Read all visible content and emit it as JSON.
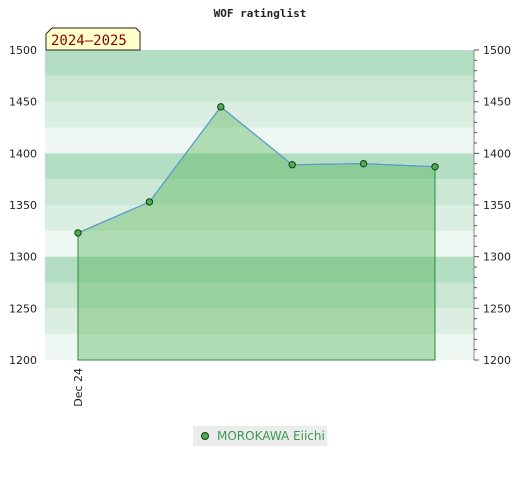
{
  "chart_data": {
    "type": "area",
    "title": "WOF ratinglist",
    "season_label": "2024–2025",
    "x_tick_labels": [
      {
        "label": "Dec 24",
        "index": 0
      }
    ],
    "series": [
      {
        "name": "MOROKAWA Eiichi",
        "values": [
          1323,
          1353,
          1445,
          1389,
          1390,
          1387
        ],
        "color": "#4caf50",
        "line_color": "#5b9bd5"
      }
    ],
    "ylim": [
      1200,
      1500
    ],
    "y_ticks": [
      1200,
      1250,
      1300,
      1350,
      1400,
      1450,
      1500
    ],
    "legend_position": "bottom-center",
    "grid": true
  }
}
